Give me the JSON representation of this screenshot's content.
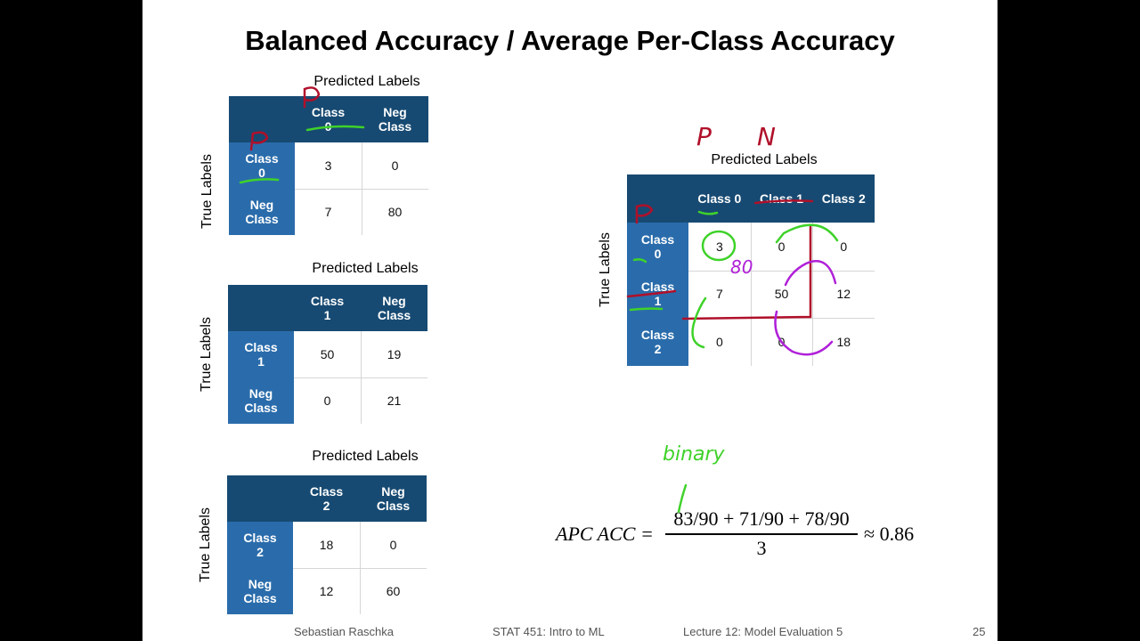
{
  "slide": {
    "title": "Balanced Accuracy / Average Per-Class Accuracy",
    "matrices": [
      {
        "predicted_label": "Predicted Labels",
        "true_label": "True Labels",
        "columns": [
          "Class 0",
          "Neg Class"
        ],
        "rows": [
          "Class 0",
          "Neg Class"
        ],
        "values": [
          [
            "3",
            "0"
          ],
          [
            "7",
            "80"
          ]
        ]
      },
      {
        "predicted_label": "Predicted Labels",
        "true_label": "True Labels",
        "columns": [
          "Class 1",
          "Neg Class"
        ],
        "rows": [
          "Class 1",
          "Neg Class"
        ],
        "values": [
          [
            "50",
            "19"
          ],
          [
            "0",
            "21"
          ]
        ]
      },
      {
        "predicted_label": "Predicted Labels",
        "true_label": "True Labels",
        "columns": [
          "Class 2",
          "Neg Class"
        ],
        "rows": [
          "Class 2",
          "Neg Class"
        ],
        "values": [
          [
            "18",
            "0"
          ],
          [
            "12",
            "60"
          ]
        ]
      },
      {
        "predicted_label": "Predicted Labels",
        "true_label": "True Labels",
        "columns": [
          "Class 0",
          "Class 1",
          "Class 2"
        ],
        "rows": [
          "Class 0",
          "Class 1",
          "Class 2"
        ],
        "values": [
          [
            "3",
            "0",
            "0"
          ],
          [
            "7",
            "50",
            "12"
          ],
          [
            "0",
            "0",
            "18"
          ]
        ]
      }
    ],
    "formula": {
      "lhs": "APC ACC =",
      "numerator": "83/90 + 71/90 + 78/90",
      "denominator": "3",
      "result": "≈ 0.86"
    },
    "annotations": {
      "p": "P",
      "n": "N",
      "eighty": "80",
      "binary": "binary",
      "colors": {
        "red": "#b0102a",
        "green": "#3fd22a",
        "purple": "#b020d8"
      }
    },
    "footer": {
      "author": "Sebastian Raschka",
      "course": "STAT 451: Intro to ML",
      "lecture": "Lecture 12: Model Evaluation 5",
      "page": "25"
    }
  }
}
